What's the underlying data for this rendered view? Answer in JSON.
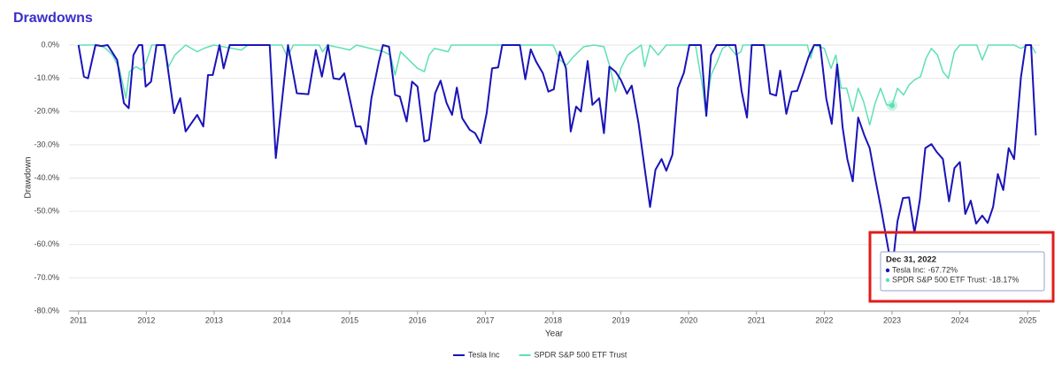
{
  "chart_data": {
    "type": "line",
    "title": "Drawdowns",
    "x_label": "Year",
    "y_label": "Drawdown",
    "xlim": [
      2010.86,
      2025.18
    ],
    "xticks": [
      2011,
      2012,
      2013,
      2014,
      2015,
      2016,
      2017,
      2018,
      2019,
      2020,
      2021,
      2022,
      2023,
      2024,
      2025
    ],
    "ylim": [
      -80,
      0
    ],
    "yticks": [
      {
        "value": 0,
        "label": "0.0%"
      },
      {
        "value": -10,
        "label": "-10.0%"
      },
      {
        "value": -20,
        "label": "-20.0%"
      },
      {
        "value": -30,
        "label": "-30.0%"
      },
      {
        "value": -40,
        "label": "-40.0%"
      },
      {
        "value": -50,
        "label": "-50.0%"
      },
      {
        "value": -60,
        "label": "-60.0%"
      },
      {
        "value": -70,
        "label": "-70.0%"
      },
      {
        "value": -80,
        "label": "-80.0%"
      }
    ],
    "grid": true,
    "legend": "bottom",
    "series": [
      {
        "name": "Tesla Inc",
        "color": "#1a13b8",
        "x": [
          2011.0,
          2011.08,
          2011.14,
          2011.25,
          2011.34,
          2011.43,
          2011.57,
          2011.67,
          2011.74,
          2011.81,
          2011.89,
          2011.94,
          2011.99,
          2012.07,
          2012.15,
          2012.27,
          2012.41,
          2012.5,
          2012.58,
          2012.75,
          2012.84,
          2012.91,
          2012.98,
          2013.08,
          2013.14,
          2013.23,
          2013.82,
          2013.91,
          2014.0,
          2014.09,
          2014.22,
          2014.39,
          2014.5,
          2014.59,
          2014.68,
          2014.76,
          2014.85,
          2014.92,
          2015.09,
          2015.16,
          2015.24,
          2015.32,
          2015.43,
          2015.49,
          2015.58,
          2015.67,
          2015.74,
          2015.84,
          2015.92,
          2016.0,
          2016.1,
          2016.17,
          2016.26,
          2016.34,
          2016.43,
          2016.51,
          2016.58,
          2016.66,
          2016.77,
          2016.85,
          2016.93,
          2017.02,
          2017.1,
          2017.19,
          2017.25,
          2017.51,
          2017.59,
          2017.67,
          2017.75,
          2017.85,
          2017.93,
          2018.01,
          2018.1,
          2018.19,
          2018.26,
          2018.34,
          2018.41,
          2018.51,
          2018.58,
          2018.68,
          2018.75,
          2018.83,
          2018.92,
          2019.0,
          2019.09,
          2019.16,
          2019.26,
          2019.34,
          2019.43,
          2019.51,
          2019.6,
          2019.67,
          2019.76,
          2019.84,
          2019.93,
          2020.01,
          2020.18,
          2020.26,
          2020.33,
          2020.41,
          2020.69,
          2020.78,
          2020.86,
          2020.93,
          2021.11,
          2021.2,
          2021.29,
          2021.35,
          2021.44,
          2021.52,
          2021.6,
          2021.69,
          2021.77,
          2021.85,
          2021.94,
          2022.03,
          2022.11,
          2022.19,
          2022.27,
          2022.34,
          2022.42,
          2022.5,
          2022.59,
          2022.67,
          2022.75,
          2022.84,
          2023.0,
          2023.08,
          2023.16,
          2023.25,
          2023.33,
          2023.41,
          2023.49,
          2023.58,
          2023.66,
          2023.75,
          2023.84,
          2023.92,
          2024.0,
          2024.08,
          2024.16,
          2024.24,
          2024.33,
          2024.41,
          2024.49,
          2024.56,
          2024.64,
          2024.72,
          2024.8,
          2024.9,
          2024.97,
          2025.05,
          2025.12
        ],
        "values": [
          0,
          -9.5,
          -10,
          0,
          -0.3,
          0,
          -4.5,
          -17.5,
          -19,
          -3,
          0,
          0,
          -12.5,
          -11,
          0,
          0,
          -20.5,
          -16,
          -26,
          -21,
          -24.5,
          -9,
          -9,
          0,
          -7,
          0,
          0,
          -34,
          -17,
          0,
          -14.5,
          -14.8,
          -1.5,
          -9.5,
          0,
          -10,
          -10.3,
          -8.5,
          -24.5,
          -24.5,
          -29.8,
          -16,
          -5,
          0,
          -0.5,
          -15,
          -15.5,
          -23,
          -11,
          -12.5,
          -29,
          -28.5,
          -14.5,
          -10.7,
          -17.5,
          -21,
          -12.8,
          -22,
          -25.5,
          -26.5,
          -29.5,
          -20.5,
          -7,
          -6.7,
          0,
          0,
          -10.3,
          -1.3,
          -5,
          -8.5,
          -14,
          -13.3,
          -2,
          -7,
          -26,
          -18.5,
          -20,
          -4.8,
          -18,
          -16,
          -26.5,
          -6.5,
          -8,
          -10.5,
          -14.6,
          -12.2,
          -23.5,
          -35.5,
          -48.7,
          -37.5,
          -34.3,
          -37.8,
          -33,
          -13,
          -8.3,
          0,
          0,
          -21.3,
          -3,
          0,
          0,
          -13.8,
          -21.8,
          0,
          0,
          -14.6,
          -15.2,
          -7.7,
          -20.7,
          -14,
          -13.8,
          -8.5,
          -3.5,
          0,
          0,
          -16.2,
          -23.7,
          -5.8,
          -24.7,
          -34.3,
          -41,
          -21.8,
          -27.1,
          -31,
          -40,
          -49.5,
          -67.72,
          -53,
          -46,
          -45.8,
          -56.5,
          -46.5,
          -31,
          -29.8,
          -32.2,
          -34.3,
          -47,
          -37,
          -35.2,
          -50.8,
          -46.8,
          -53.7,
          -51.3,
          -53.5,
          -48.7,
          -38.8,
          -43.6,
          -31,
          -34.3,
          -9.8,
          0,
          0,
          -27.2
        ]
      },
      {
        "name": "SPDR S&P 500 ETF Trust",
        "color": "#5ee0b5",
        "x": [
          2011.0,
          2011.3,
          2011.4,
          2011.5,
          2011.6,
          2011.7,
          2011.75,
          2011.85,
          2011.93,
          2012.0,
          2012.08,
          2012.25,
          2012.33,
          2012.42,
          2012.5,
          2012.58,
          2012.75,
          2012.85,
          2012.92,
          2013.0,
          2013.4,
          2013.5,
          2014.0,
          2014.08,
          2014.17,
          2014.55,
          2014.6,
          2014.67,
          2014.9,
          2015.0,
          2015.1,
          2015.5,
          2015.6,
          2015.67,
          2015.75,
          2015.85,
          2016.0,
          2016.1,
          2016.17,
          2016.25,
          2016.45,
          2016.5,
          2018.0,
          2018.1,
          2018.2,
          2018.3,
          2018.45,
          2018.6,
          2018.75,
          2018.83,
          2018.92,
          2019.0,
          2019.1,
          2019.2,
          2019.3,
          2019.35,
          2019.43,
          2019.55,
          2019.67,
          2020.1,
          2020.2,
          2020.25,
          2020.33,
          2020.42,
          2020.5,
          2020.58,
          2020.7,
          2020.77,
          2020.8,
          2021.75,
          2021.8,
          2021.85,
          2022.0,
          2022.1,
          2022.17,
          2022.25,
          2022.33,
          2022.42,
          2022.5,
          2022.58,
          2022.67,
          2022.75,
          2022.83,
          2022.92,
          2023.0,
          2023.08,
          2023.17,
          2023.25,
          2023.33,
          2023.42,
          2023.5,
          2023.58,
          2023.67,
          2023.75,
          2023.83,
          2023.92,
          2024.0,
          2024.25,
          2024.33,
          2024.42,
          2024.8,
          2024.9,
          2025.0,
          2025.05,
          2025.12
        ],
        "values": [
          0,
          0,
          -1,
          -3,
          -7,
          -16,
          -8,
          -6.5,
          -7.5,
          -5,
          0,
          0,
          -6.5,
          -3,
          -1.5,
          0,
          -2,
          -1,
          -0.5,
          0,
          -1.5,
          0,
          0,
          -3.5,
          0,
          0,
          -2,
          0,
          -1,
          -1.5,
          0,
          -2,
          -3,
          -9,
          -2,
          -4,
          -7,
          -8,
          -3,
          -1,
          -2,
          0,
          0,
          -4.5,
          -6,
          -3.5,
          -0.5,
          0,
          -0.5,
          -6,
          -14,
          -7,
          -3,
          -1.5,
          0,
          -6.5,
          0,
          -3,
          0,
          0,
          -12,
          -20,
          -9,
          -5,
          -1,
          0,
          -3,
          -2,
          0,
          0,
          -4,
          0,
          -1,
          -7,
          -3,
          -13,
          -13,
          -20,
          -13,
          -17,
          -24,
          -17.5,
          -13,
          -18,
          -18.17,
          -13,
          -15,
          -12,
          -10.5,
          -9.5,
          -4,
          -1,
          -3,
          -8,
          -10,
          -2,
          0,
          0,
          -4.5,
          0,
          0,
          -1,
          0,
          0,
          -2.5
        ]
      }
    ],
    "tooltip": {
      "title": "Dec 31, 2022",
      "entries": [
        "Tesla Inc: -67.72%",
        "SPDR S&P 500 ETF Trust: -18.17%"
      ]
    }
  }
}
